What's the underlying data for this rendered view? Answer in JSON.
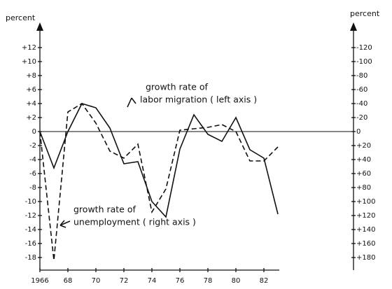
{
  "chart_data": {
    "type": "line",
    "axis_labels": {
      "y": "percent",
      "y2": "percent"
    },
    "annotations": [
      {
        "lines": [
          "growth rate of",
          "labor migration ( left axis )"
        ],
        "series": 0
      },
      {
        "lines": [
          "growth rate of",
          "unemployment ( right axis )"
        ],
        "series": 1
      }
    ],
    "x": [
      1966,
      1967,
      1968,
      1969,
      1970,
      1971,
      1972,
      1973,
      1974,
      1975,
      1976,
      1977,
      1978,
      1979,
      1980,
      1981,
      1982,
      1983
    ],
    "xlim": [
      1966,
      1983
    ],
    "xticks": [
      1966,
      {
        "value": 1968,
        "label": "68"
      },
      {
        "value": 1970,
        "label": "70"
      },
      {
        "value": 1972,
        "label": "72"
      },
      {
        "value": 1974,
        "label": "74"
      },
      {
        "value": 1976,
        "label": "76"
      },
      {
        "value": 1978,
        "label": "78"
      },
      {
        "value": 1980,
        "label": "80"
      },
      {
        "value": 1982,
        "label": "82"
      }
    ],
    "ylim": [
      -19.5,
      15
    ],
    "yticks": [
      {
        "value": 12,
        "label": "+12"
      },
      {
        "value": 10,
        "label": "+10"
      },
      {
        "value": 8,
        "label": "+8"
      },
      {
        "value": 6,
        "label": "+6"
      },
      {
        "value": 4,
        "label": "+4"
      },
      {
        "value": 2,
        "label": "+2"
      },
      0,
      -2,
      -4,
      -6,
      -8,
      -10,
      -12,
      -14,
      -16,
      -18
    ],
    "y2lim": [
      195,
      -150
    ],
    "y2ticks": [
      -120,
      -100,
      -80,
      -60,
      -40,
      -20,
      0,
      {
        "value": 20,
        "label": "+20"
      },
      {
        "value": 40,
        "label": "+40"
      },
      {
        "value": 60,
        "label": "+60"
      },
      {
        "value": 80,
        "label": "+80"
      },
      {
        "value": 100,
        "label": "+100"
      },
      {
        "value": 120,
        "label": "+120"
      },
      {
        "value": 140,
        "label": "+140"
      },
      {
        "value": 160,
        "label": "+160"
      },
      {
        "value": 180,
        "label": "+180"
      }
    ],
    "zero_line": true,
    "series": [
      {
        "name": "growth rate of labor migration",
        "color": "#111111",
        "style": "solid",
        "values": [
          0,
          -5.2,
          0,
          4,
          3.4,
          0.5,
          -4.6,
          -4.3,
          -10,
          -12.2,
          -2.5,
          2.4,
          -0.4,
          -1.4,
          2,
          -2.6,
          -3.8,
          -11.8
        ]
      },
      {
        "name": "growth rate of unemployment",
        "color": "#111111",
        "style": "dashed",
        "axis": "y2",
        "values": [
          0,
          184,
          -28,
          -40,
          -12,
          28,
          38,
          18,
          115,
          82,
          -2,
          -4,
          -6,
          -10,
          0,
          42,
          42,
          22
        ]
      }
    ]
  }
}
